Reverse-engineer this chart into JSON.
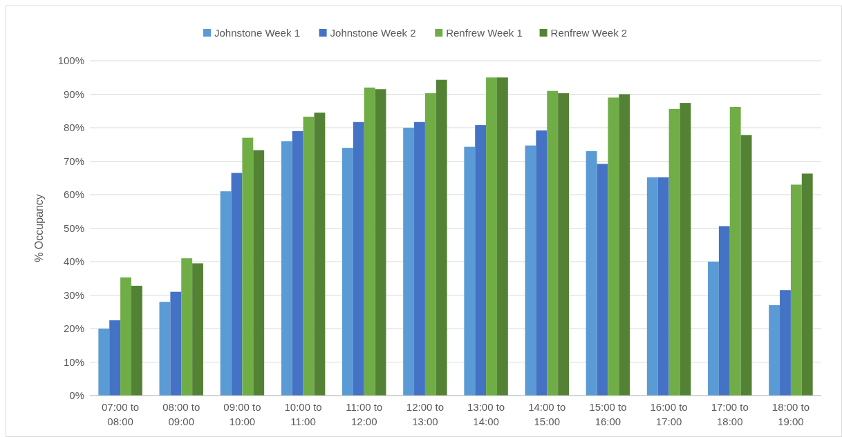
{
  "chart_data": {
    "type": "bar",
    "ylabel": "% Occupancy",
    "categories": [
      "07:00 to 08:00",
      "08:00 to 09:00",
      "09:00 to 10:00",
      "10:00 to 11:00",
      "11:00 to 12:00",
      "12:00 to 13:00",
      "13:00 to 14:00",
      "14:00 to 15:00",
      "15:00 to 16:00",
      "16:00 to 17:00",
      "17:00 to 18:00",
      "18:00 to 19:00"
    ],
    "series": [
      {
        "name": "Johnstone Week 1",
        "color": "#5b9bd5",
        "values": [
          20,
          28,
          61,
          76,
          74,
          80,
          74.3,
          74.7,
          73,
          65.2,
          40,
          27
        ]
      },
      {
        "name": "Johnstone Week 2",
        "color": "#4472c4",
        "values": [
          22.5,
          31,
          66.5,
          79,
          81.7,
          81.7,
          80.8,
          79.2,
          69.2,
          65.2,
          50.6,
          31.5
        ]
      },
      {
        "name": "Renfrew Week 1",
        "color": "#70ad47",
        "values": [
          35.3,
          41,
          77,
          83.3,
          92,
          90.3,
          95,
          91,
          89,
          85.6,
          86.2,
          63
        ]
      },
      {
        "name": "Renfrew Week 2",
        "color": "#548235",
        "values": [
          32.8,
          39.5,
          73.3,
          84.5,
          91.5,
          94.3,
          95,
          90.3,
          90,
          87.4,
          77.8,
          66.3
        ]
      }
    ],
    "ylim": [
      0,
      100
    ],
    "yticks": [
      {
        "value": 0,
        "label": "0%"
      },
      {
        "value": 10,
        "label": "10%"
      },
      {
        "value": 20,
        "label": "20%"
      },
      {
        "value": 30,
        "label": "30%"
      },
      {
        "value": 40,
        "label": "40%"
      },
      {
        "value": 50,
        "label": "50%"
      },
      {
        "value": 60,
        "label": "60%"
      },
      {
        "value": 70,
        "label": "70%"
      },
      {
        "value": 80,
        "label": "80%"
      },
      {
        "value": 90,
        "label": "90%"
      },
      {
        "value": 100,
        "label": "100%"
      }
    ],
    "grid": "y",
    "legend": "top"
  }
}
